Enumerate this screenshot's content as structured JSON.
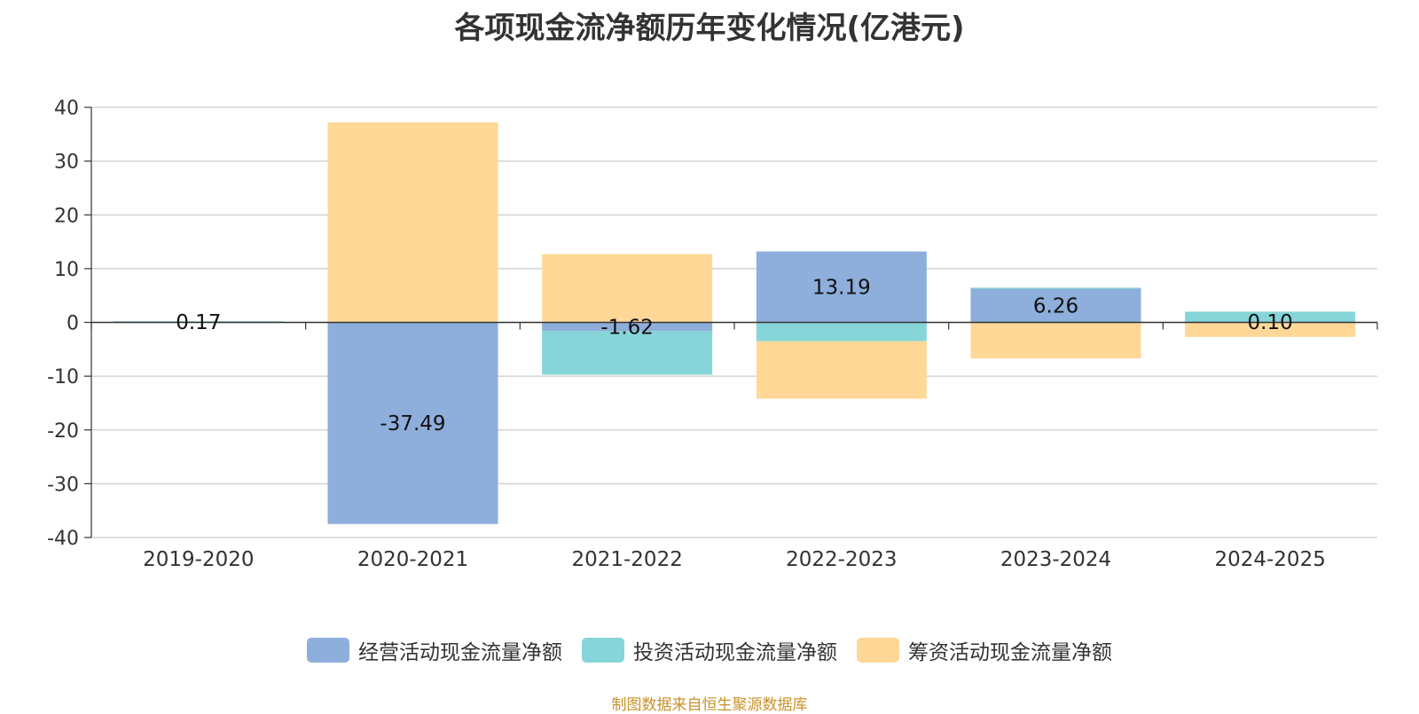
{
  "chart_data": {
    "type": "bar",
    "stacked": true,
    "title": "各项现金流净额历年变化情况(亿港元)",
    "categories": [
      "2019-2020",
      "2020-2021",
      "2021-2022",
      "2022-2023",
      "2023-2024",
      "2024-2025"
    ],
    "series": [
      {
        "name": "经营活动现金流量净额",
        "color": "#8eaedb",
        "values": [
          0.17,
          -37.49,
          -1.62,
          13.19,
          6.26,
          0.1
        ]
      },
      {
        "name": "投资活动现金流量净额",
        "color": "#86d5d8",
        "values": [
          0.05,
          0.0,
          -8.1,
          -3.5,
          0.2,
          1.9
        ]
      },
      {
        "name": "筹资活动现金流量净额",
        "color": "#ffd898",
        "values": [
          0.0,
          37.2,
          12.7,
          -10.7,
          -6.7,
          -2.7
        ]
      }
    ],
    "data_labels": [
      "0.17",
      "-37.49",
      "-1.62",
      "13.19",
      "6.26",
      "0.10"
    ],
    "yticks": [
      40,
      30,
      20,
      10,
      0,
      -10,
      -20,
      -30,
      -40
    ],
    "ylim": [
      -40,
      40
    ],
    "grid": true,
    "legend_position": "bottom"
  },
  "source_text": "制图数据来自恒生聚源数据库"
}
